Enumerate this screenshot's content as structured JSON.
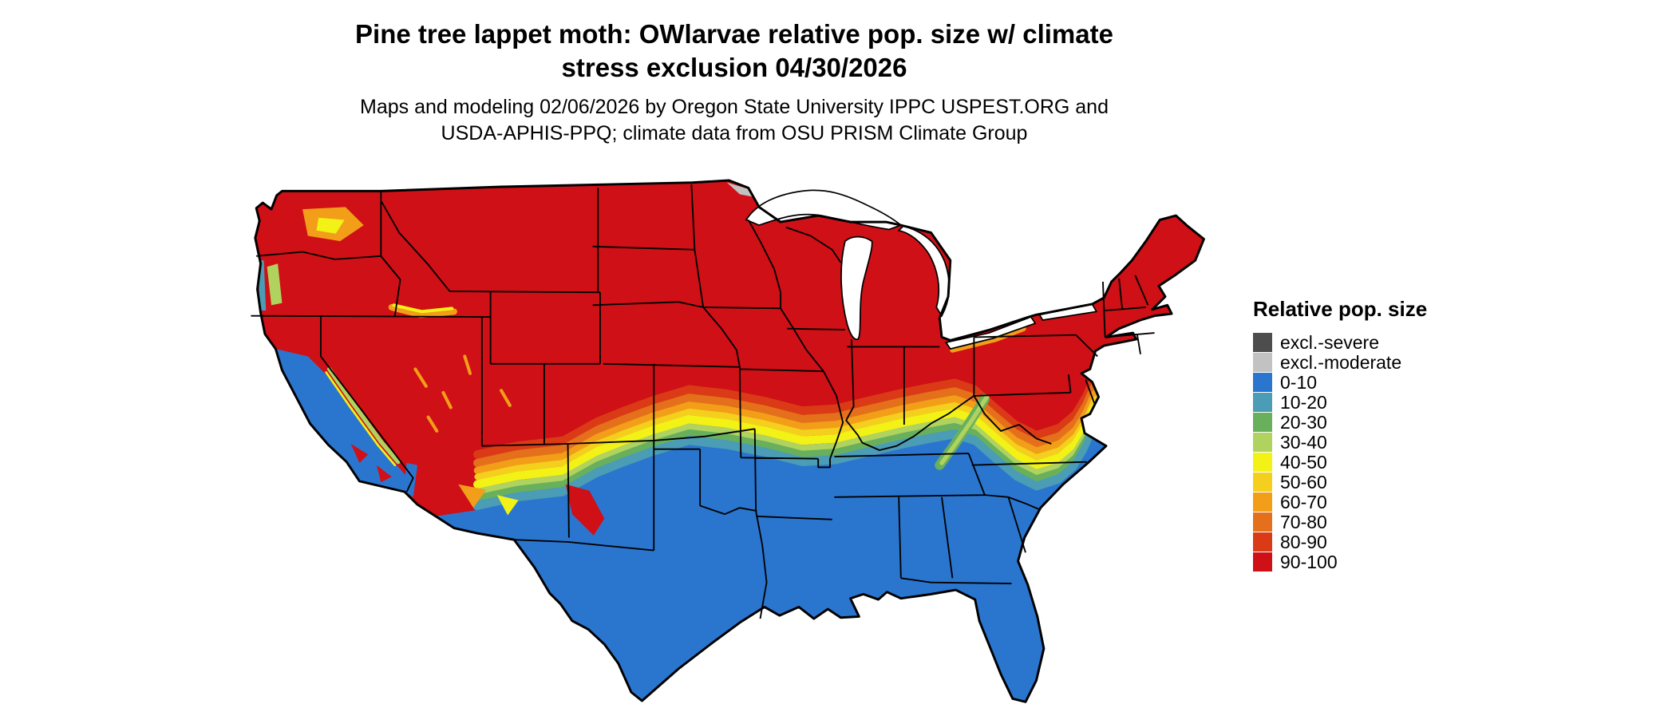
{
  "title": {
    "line1": "Pine tree lappet moth: OWlarvae relative pop. size w/ climate",
    "line2": "stress exclusion 04/30/2026"
  },
  "subtitle": {
    "line1": "Maps and modeling 02/06/2026 by Oregon State University IPPC USPEST.ORG and",
    "line2": "USDA-APHIS-PPQ; climate data from OSU PRISM Climate Group"
  },
  "legend": {
    "title": "Relative pop. size",
    "items": [
      {
        "label": "excl.-severe",
        "color": "#4d4d4d"
      },
      {
        "label": "excl.-moderate",
        "color": "#c2c2c2"
      },
      {
        "label": "0-10",
        "color": "#2a76cf"
      },
      {
        "label": "10-20",
        "color": "#4b9cb5"
      },
      {
        "label": "20-30",
        "color": "#68b05c"
      },
      {
        "label": "30-40",
        "color": "#b0d25f"
      },
      {
        "label": "40-50",
        "color": "#f2f216"
      },
      {
        "label": "50-60",
        "color": "#f4cf1d"
      },
      {
        "label": "60-70",
        "color": "#f29e19"
      },
      {
        "label": "70-80",
        "color": "#e5701b"
      },
      {
        "label": "80-90",
        "color": "#da3b16"
      },
      {
        "label": "90-100",
        "color": "#cf1016"
      }
    ]
  },
  "map": {
    "type": "choropleth",
    "region": "contiguous United States",
    "pattern": "high relative population (red) across northern states, graded transition band (orange-yellow-green-teal) through the central latitudes, low values (blue) across the South and California lowlands, climate-stress exclusion (gray) along the northern Minnesota border"
  }
}
